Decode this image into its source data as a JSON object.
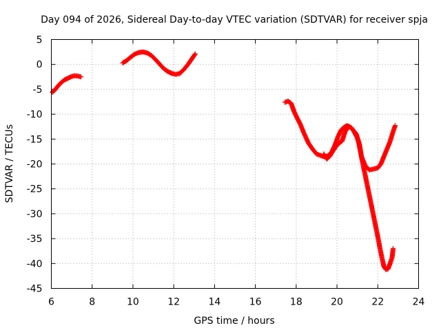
{
  "chart_data": {
    "type": "scatter",
    "title": "Day 094 of 2026, Sidereal Day-to-day VTEC variation (SDTVAR) for receiver spja",
    "xlabel": "GPS time / hours",
    "ylabel": "SDTVAR / TECUs",
    "xlim": [
      6,
      24
    ],
    "ylim": [
      -45,
      5
    ],
    "x_ticks": [
      6,
      8,
      10,
      12,
      14,
      16,
      18,
      20,
      22,
      24
    ],
    "y_ticks": [
      5,
      0,
      -5,
      -10,
      -15,
      -20,
      -25,
      -30,
      -35,
      -40,
      -45
    ],
    "grid": true,
    "marker": "plus",
    "series": [
      {
        "name": "segment-1",
        "color": "#ff0000",
        "x": [
          6.05,
          6.2,
          6.35,
          6.5,
          6.65,
          6.8,
          6.95,
          7.1,
          7.25,
          7.45
        ],
        "y": [
          -5.6,
          -5.0,
          -4.2,
          -3.6,
          -3.1,
          -2.8,
          -2.5,
          -2.3,
          -2.3,
          -2.5
        ]
      },
      {
        "name": "segment-2",
        "color": "#ff0000",
        "x": [
          9.5,
          9.7,
          9.9,
          10.1,
          10.3,
          10.5,
          10.7,
          10.9,
          11.1,
          11.3,
          11.5,
          11.7,
          11.9,
          12.1,
          12.3,
          12.5,
          12.7,
          12.9,
          13.05
        ],
        "y": [
          0.3,
          0.8,
          1.5,
          2.1,
          2.4,
          2.5,
          2.3,
          1.8,
          1.0,
          0.1,
          -0.8,
          -1.4,
          -1.8,
          -2.0,
          -1.8,
          -1.0,
          0.0,
          1.2,
          2.1
        ]
      },
      {
        "name": "segment-3",
        "color": "#ff0000",
        "x": [
          17.45,
          17.6,
          17.75,
          17.9,
          18.05,
          18.2,
          18.4,
          18.6,
          18.8,
          19.0,
          19.2,
          19.4,
          19.6,
          19.75,
          19.9,
          20.05,
          20.2,
          20.35,
          20.5,
          20.65,
          20.8,
          20.95,
          21.05,
          21.2,
          21.4,
          21.6,
          21.8,
          22.0,
          22.15,
          22.3,
          22.45,
          22.6,
          22.75,
          22.85
        ],
        "y": [
          -7.6,
          -7.4,
          -7.8,
          -9.5,
          -10.8,
          -12.0,
          -14.0,
          -15.8,
          -17.0,
          -18.0,
          -18.3,
          -18.6,
          -18.3,
          -17.5,
          -16.2,
          -14.5,
          -13.2,
          -12.6,
          -12.3,
          -12.6,
          -13.2,
          -14.0,
          -15.5,
          -18.5,
          -20.5,
          -21.2,
          -21.0,
          -20.8,
          -20.0,
          -18.5,
          -17.0,
          -15.5,
          -13.5,
          -12.3
        ]
      },
      {
        "name": "segment-4",
        "color": "#ff0000",
        "x": [
          19.35,
          19.5,
          19.65,
          19.8,
          19.95,
          20.1,
          20.25,
          20.4,
          20.55,
          20.7,
          20.85,
          21.0,
          21.1,
          21.2,
          21.3,
          21.4,
          21.5,
          21.6,
          21.7,
          21.8,
          21.9,
          22.0,
          22.1,
          22.2,
          22.3,
          22.4,
          22.5,
          22.6,
          22.7,
          22.75
        ],
        "y": [
          -18.0,
          -19.0,
          -18.4,
          -17.4,
          -16.5,
          -15.8,
          -15.4,
          -13.5,
          -12.5,
          -12.7,
          -13.6,
          -14.8,
          -16.0,
          -18.6,
          -20.6,
          -22.6,
          -24.6,
          -26.6,
          -28.6,
          -30.6,
          -32.6,
          -34.6,
          -36.8,
          -38.8,
          -40.6,
          -41.2,
          -41.1,
          -40.0,
          -38.8,
          -37.0
        ]
      }
    ]
  }
}
